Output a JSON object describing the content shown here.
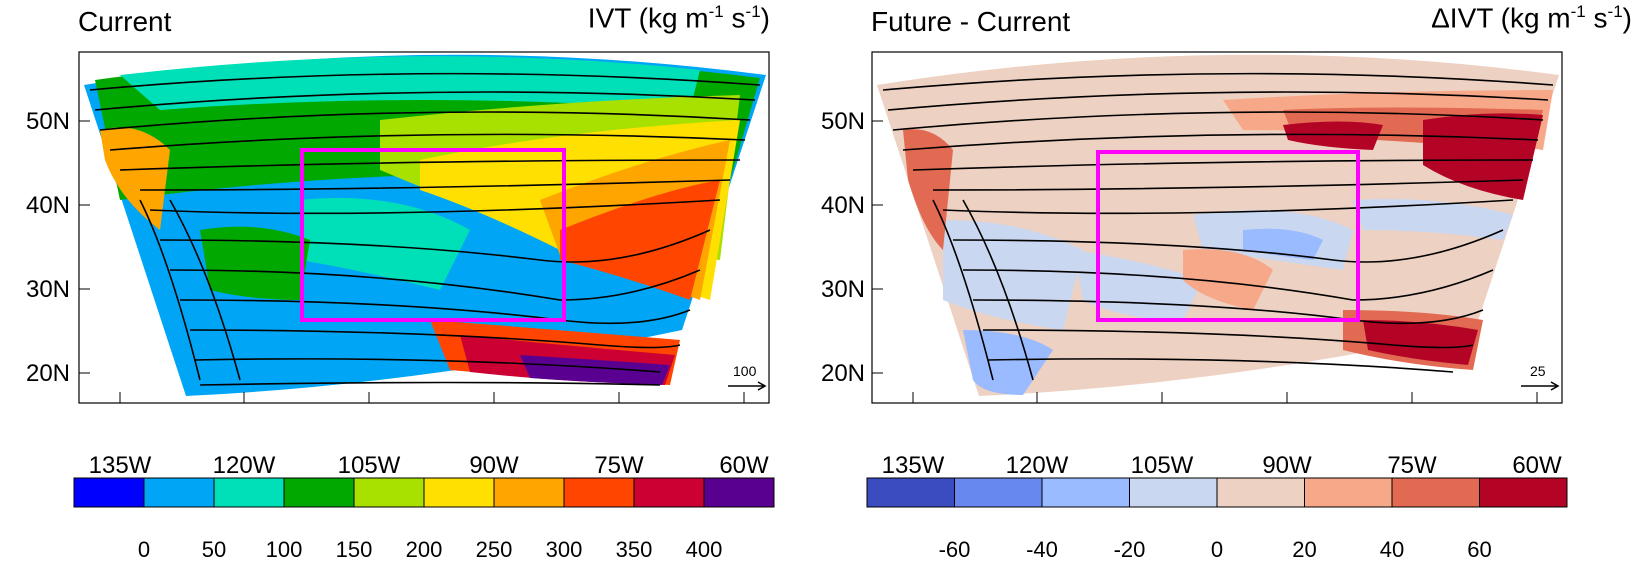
{
  "left_panel": {
    "title_left": "Current",
    "title_right_text": "IVT (kg m",
    "title_right_sup1": "-1",
    "title_right_mid": " s",
    "title_right_sup2": "-1",
    "title_right_end": ")",
    "ref_vector_label": "100",
    "lat_labels": [
      "50N",
      "40N",
      "30N",
      "20N"
    ],
    "lon_labels": [
      "135W",
      "120W",
      "105W",
      "90W",
      "75W",
      "60W"
    ],
    "colorbar": {
      "colors": [
        "#0000ff",
        "#00a6f5",
        "#00e0b8",
        "#00a800",
        "#a8e000",
        "#ffe000",
        "#ffa500",
        "#ff4500",
        "#cc0033",
        "#5a0090"
      ],
      "labels": [
        "0",
        "50",
        "100",
        "150",
        "200",
        "250",
        "300",
        "350",
        "400"
      ]
    }
  },
  "right_panel": {
    "title_left": "Future - Current",
    "title_right_text": "ΔIVT (kg m",
    "title_right_sup1": "-1",
    "title_right_mid": " s",
    "title_right_sup2": "-1",
    "title_right_end": ")",
    "ref_vector_label": "25",
    "lat_labels": [
      "50N",
      "40N",
      "30N",
      "20N"
    ],
    "lon_labels": [
      "135W",
      "120W",
      "105W",
      "90W",
      "75W",
      "60W"
    ],
    "colorbar": {
      "colors": [
        "#3a4cc0",
        "#6788ee",
        "#9abbff",
        "#c9d7f0",
        "#edd1c2",
        "#f7a889",
        "#e26952",
        "#b40426"
      ],
      "labels": [
        "-60",
        "-40",
        "-20",
        "0",
        "20",
        "40",
        "60"
      ]
    }
  },
  "colors": {
    "highlight_box": "#ff00ff"
  }
}
